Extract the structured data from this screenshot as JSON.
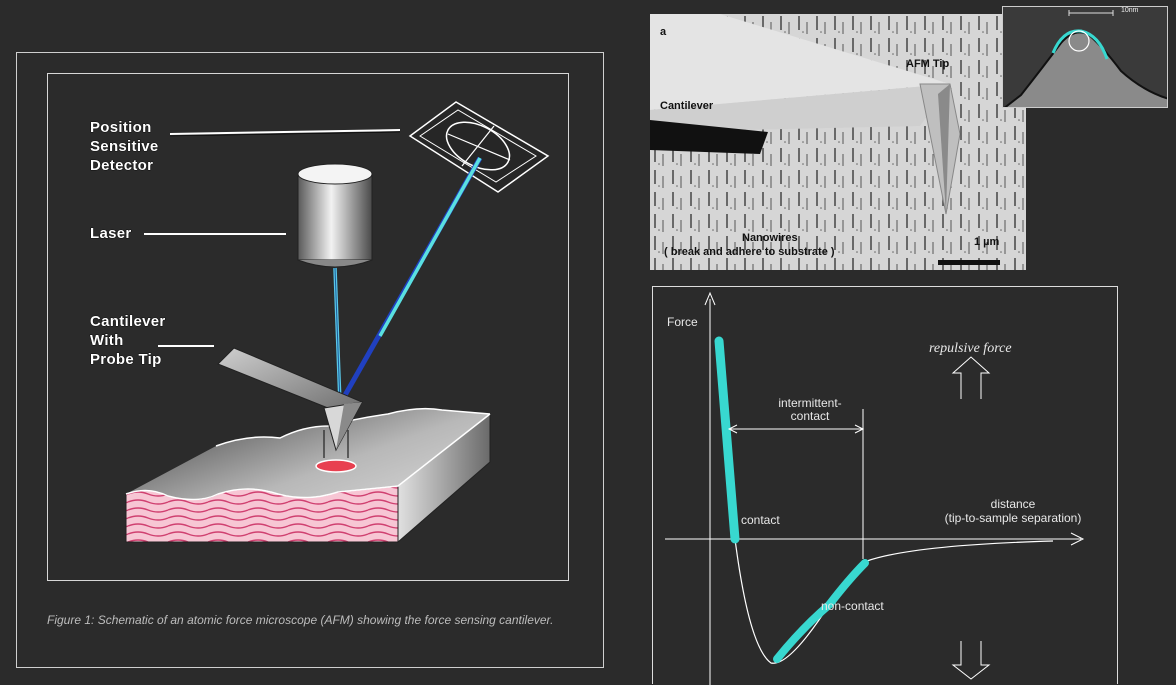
{
  "afm_schematic": {
    "labels": {
      "psd": [
        "Position",
        "Sensitive",
        "Detector"
      ],
      "laser": "Laser",
      "cantilever": [
        "Cantilever",
        "With",
        "Probe Tip"
      ]
    },
    "caption": "Figure 1:  Schematic of an atomic force microscope (AFM) showing the force sensing cantilever.",
    "colors": {
      "laser_beam": "#5ac8e8",
      "reflected_beam": "#2040c0",
      "sample_pink": "#f0a0b8",
      "sample_top": "#9a9a9a"
    }
  },
  "sem_image": {
    "panel_letter": "a",
    "tip_label": "AFM Tip",
    "cantilever_label": "Cantilever",
    "nanowires_label": "Nanowires",
    "nanowires_note": "( break and adhere to substrate )",
    "scale_label": "1 µm"
  },
  "inset_image": {
    "scale_label": "10nm"
  },
  "force_curve": {
    "y_label": "Force",
    "x_label": "distance",
    "x_sublabel": "(tip-to-sample separation)",
    "repulsive_label": "repulsive force",
    "intermittent_label": [
      "intermittent-",
      "contact"
    ],
    "contact_label": "contact",
    "noncontact_label": "non-contact",
    "colors": {
      "highlight": "#38d8d0",
      "line": "#ffffff"
    }
  }
}
